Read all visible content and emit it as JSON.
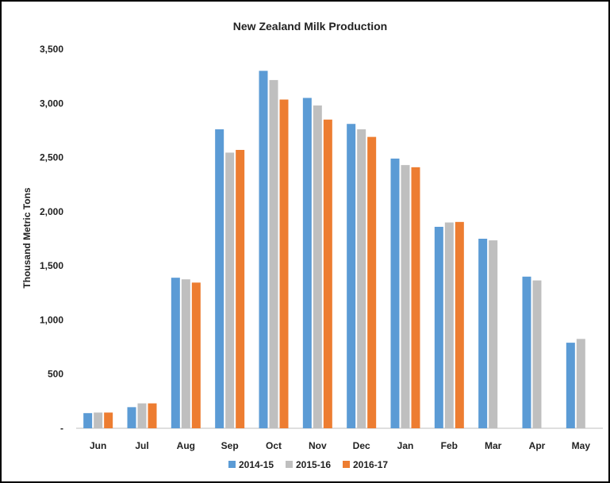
{
  "chart_data": {
    "type": "bar",
    "title": "New Zealand Milk Production",
    "xlabel": "",
    "ylabel": "Thousand Metric Tons",
    "ylim": [
      0,
      3500
    ],
    "yticks": [
      0,
      500,
      1000,
      1500,
      2000,
      2500,
      3000,
      3500
    ],
    "ytick_labels": [
      "-",
      "500",
      "1,000",
      "1,500",
      "2,000",
      "2,500",
      "3,000",
      "3,500"
    ],
    "grid": false,
    "legend_position": "bottom",
    "categories": [
      "Jun",
      "Jul",
      "Aug",
      "Sep",
      "Oct",
      "Nov",
      "Dec",
      "Jan",
      "Feb",
      "Mar",
      "Apr",
      "May"
    ],
    "series": [
      {
        "name": "2014-15",
        "color": "#5B9BD5",
        "values": [
          140,
          195,
          1390,
          2760,
          3300,
          3050,
          2810,
          2490,
          1860,
          1750,
          1400,
          790
        ]
      },
      {
        "name": "2015-16",
        "color": "#BFBFBF",
        "values": [
          145,
          230,
          1375,
          2545,
          3215,
          2980,
          2760,
          2430,
          1900,
          1735,
          1365,
          825
        ]
      },
      {
        "name": "2016-17",
        "color": "#ED7D31",
        "values": [
          145,
          230,
          1345,
          2570,
          3035,
          2850,
          2690,
          2410,
          1905,
          null,
          null,
          null
        ]
      }
    ]
  }
}
